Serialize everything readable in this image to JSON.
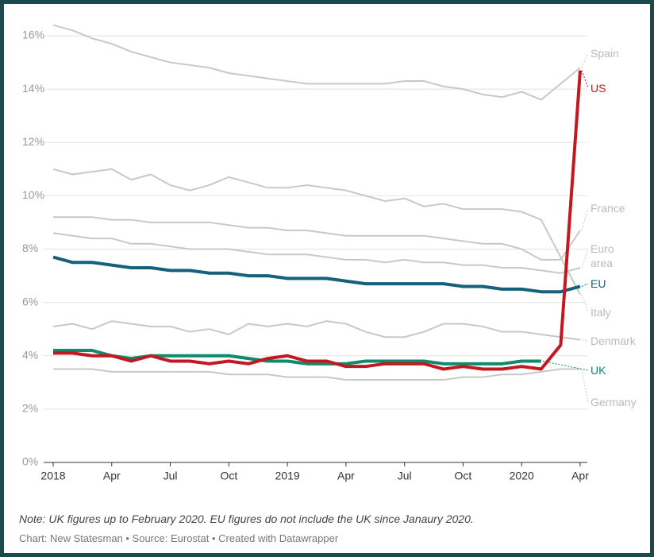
{
  "chart_data": {
    "type": "line",
    "categories": [
      "2018",
      null,
      null,
      "Apr",
      null,
      null,
      "Jul",
      null,
      null,
      "Oct",
      null,
      null,
      "2019",
      null,
      null,
      "Apr",
      null,
      null,
      "Jul",
      null,
      null,
      "Oct",
      null,
      null,
      "2020",
      null,
      null,
      "Apr"
    ],
    "ylim": [
      0,
      16
    ],
    "yticks": [
      {
        "value": 0,
        "label": "0%"
      },
      {
        "value": 2,
        "label": "2%"
      },
      {
        "value": 4,
        "label": "4%"
      },
      {
        "value": 6,
        "label": "6%"
      },
      {
        "value": 8,
        "label": "8%"
      },
      {
        "value": 10,
        "label": "10%"
      },
      {
        "value": 12,
        "label": "12%"
      },
      {
        "value": 14,
        "label": "14%"
      },
      {
        "value": 16,
        "label": "16%"
      }
    ],
    "grid": true,
    "series": [
      {
        "name": "Spain",
        "color": "#c8c8c8",
        "values": [
          16.4,
          16.2,
          15.9,
          15.7,
          15.4,
          15.2,
          15.0,
          14.9,
          14.8,
          14.6,
          14.5,
          14.4,
          14.3,
          14.2,
          14.2,
          14.2,
          14.2,
          14.2,
          14.3,
          14.3,
          14.1,
          14.0,
          13.8,
          13.7,
          13.9,
          13.6,
          14.2,
          14.8
        ]
      },
      {
        "name": "Italy",
        "color": "#c8c8c8",
        "values": [
          11.0,
          10.8,
          10.9,
          11.0,
          10.6,
          10.8,
          10.4,
          10.2,
          10.4,
          10.7,
          10.5,
          10.3,
          10.3,
          10.4,
          10.3,
          10.2,
          10.0,
          9.8,
          9.9,
          9.6,
          9.7,
          9.5,
          9.5,
          9.5,
          9.4,
          9.1,
          7.7,
          6.3
        ]
      },
      {
        "name": "France",
        "color": "#c8c8c8",
        "values": [
          9.2,
          9.2,
          9.2,
          9.1,
          9.1,
          9.0,
          9.0,
          9.0,
          9.0,
          8.9,
          8.8,
          8.8,
          8.7,
          8.7,
          8.6,
          8.5,
          8.5,
          8.5,
          8.5,
          8.5,
          8.4,
          8.3,
          8.2,
          8.2,
          8.0,
          7.6,
          7.6,
          8.7
        ]
      },
      {
        "name": "Euro area",
        "color": "#c8c8c8",
        "values": [
          8.6,
          8.5,
          8.4,
          8.4,
          8.2,
          8.2,
          8.1,
          8.0,
          8.0,
          8.0,
          7.9,
          7.8,
          7.8,
          7.8,
          7.7,
          7.6,
          7.6,
          7.5,
          7.6,
          7.5,
          7.5,
          7.4,
          7.4,
          7.3,
          7.3,
          7.2,
          7.1,
          7.3
        ]
      },
      {
        "name": "Denmark",
        "color": "#c8c8c8",
        "values": [
          5.1,
          5.2,
          5.0,
          5.3,
          5.2,
          5.1,
          5.1,
          4.9,
          5.0,
          4.8,
          5.2,
          5.1,
          5.2,
          5.1,
          5.3,
          5.2,
          4.9,
          4.7,
          4.7,
          4.9,
          5.2,
          5.2,
          5.1,
          4.9,
          4.9,
          4.8,
          4.7,
          4.6
        ]
      },
      {
        "name": "Germany",
        "color": "#c8c8c8",
        "values": [
          3.5,
          3.5,
          3.5,
          3.4,
          3.4,
          3.4,
          3.4,
          3.4,
          3.4,
          3.3,
          3.3,
          3.3,
          3.2,
          3.2,
          3.2,
          3.1,
          3.1,
          3.1,
          3.1,
          3.1,
          3.1,
          3.2,
          3.2,
          3.3,
          3.3,
          3.4,
          3.5,
          3.5
        ]
      },
      {
        "name": "EU",
        "color": "#15607a",
        "values": [
          7.7,
          7.5,
          7.5,
          7.4,
          7.3,
          7.3,
          7.2,
          7.2,
          7.1,
          7.1,
          7.0,
          7.0,
          6.9,
          6.9,
          6.9,
          6.8,
          6.7,
          6.7,
          6.7,
          6.7,
          6.7,
          6.6,
          6.6,
          6.5,
          6.5,
          6.4,
          6.4,
          6.6
        ]
      },
      {
        "name": "UK",
        "color": "#0f8a6c",
        "values": [
          4.2,
          4.2,
          4.2,
          4.0,
          3.9,
          4.0,
          4.0,
          4.0,
          4.0,
          4.0,
          3.9,
          3.8,
          3.8,
          3.7,
          3.7,
          3.7,
          3.8,
          3.8,
          3.8,
          3.8,
          3.7,
          3.7,
          3.7,
          3.7,
          3.8,
          3.8,
          null,
          null
        ]
      },
      {
        "name": "US",
        "color": "#c1191f",
        "values": [
          4.1,
          4.1,
          4.0,
          4.0,
          3.8,
          4.0,
          3.8,
          3.8,
          3.7,
          3.8,
          3.7,
          3.9,
          4.0,
          3.8,
          3.8,
          3.6,
          3.6,
          3.7,
          3.7,
          3.7,
          3.5,
          3.6,
          3.5,
          3.5,
          3.6,
          3.5,
          4.4,
          14.7
        ]
      }
    ],
    "note": "Note: UK figures up to February 2020. EU figures do not include the UK since Janaury 2020.",
    "source": "Chart: New Statesman • Source: Eurostat • Created with Datawrapper"
  }
}
